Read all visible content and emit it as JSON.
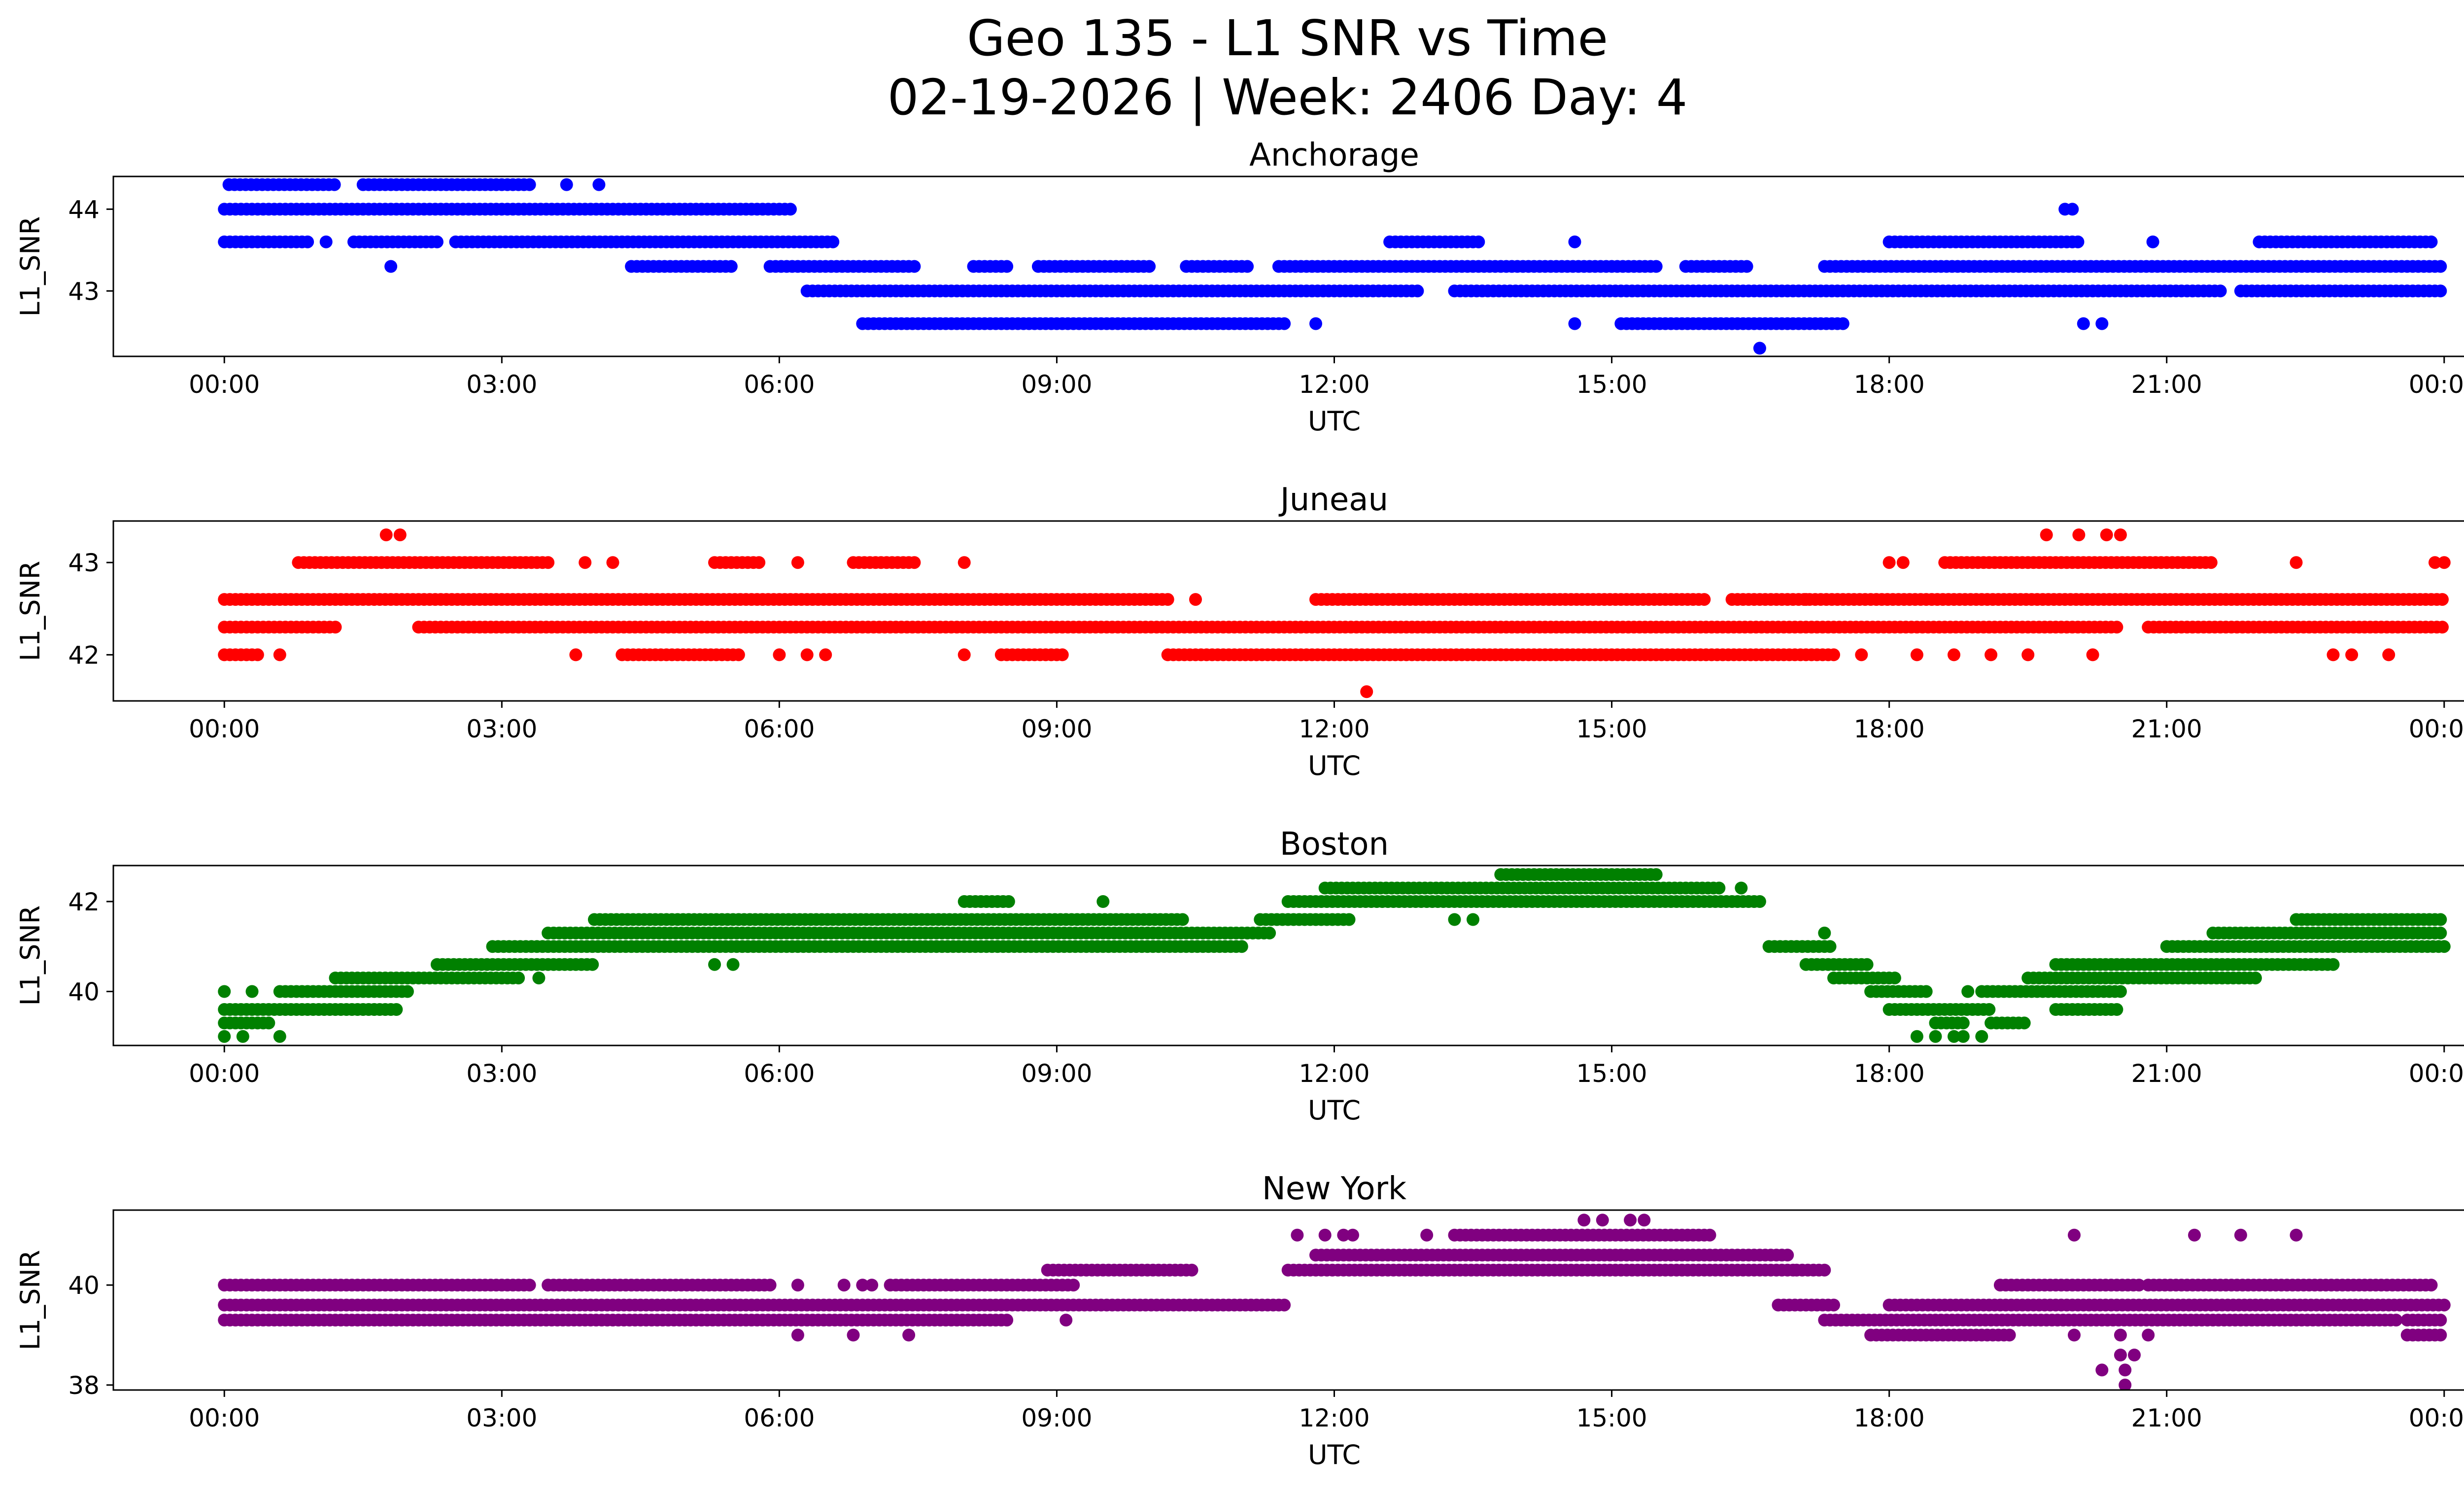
{
  "title": "Geo 135 - L1 SNR vs Time",
  "subtitle": "02-19-2026 | Week: 2406 Day: 4",
  "chart_data": [
    {
      "type": "scatter",
      "title": "Anchorage",
      "xlabel": "UTC",
      "ylabel": "L1_SNR",
      "color": "#0000ff",
      "xlim": [
        -1.2,
        25.2
      ],
      "ylim": [
        42.2,
        44.4
      ],
      "yticks": [
        43,
        44
      ],
      "xtick_labels": [
        "00:00",
        "03:00",
        "06:00",
        "09:00",
        "12:00",
        "15:00",
        "18:00",
        "21:00",
        "00:00"
      ],
      "levels": [
        {
          "y": 44.3,
          "segments": [
            [
              0.05,
              1.2
            ],
            [
              1.5,
              3.3
            ]
          ],
          "points": [
            3.7,
            4.05
          ]
        },
        {
          "y": 44.0,
          "segments": [
            [
              0,
              6.15
            ]
          ],
          "points": [
            19.9,
            19.98
          ]
        },
        {
          "y": 43.6,
          "segments": [
            [
              0,
              0.9
            ],
            [
              1.4,
              2.3
            ],
            [
              2.5,
              6.6
            ],
            [
              12.6,
              13.6
            ],
            [
              18.0,
              20.05
            ],
            [
              22.0,
              23.9
            ]
          ],
          "points": [
            1.1,
            14.6,
            20.85
          ]
        },
        {
          "y": 43.3,
          "segments": [
            [
              4.4,
              5.5
            ],
            [
              5.9,
              7.5
            ],
            [
              8.1,
              8.5
            ],
            [
              8.8,
              10.0
            ],
            [
              10.4,
              11.1
            ],
            [
              11.4,
              15.5
            ],
            [
              15.8,
              16.5
            ],
            [
              17.3,
              24.0
            ]
          ],
          "points": [
            1.8
          ]
        },
        {
          "y": 43.0,
          "segments": [
            [
              6.3,
              12.9
            ],
            [
              13.3,
              21.6
            ],
            [
              21.8,
              24.0
            ]
          ],
          "points": []
        },
        {
          "y": 42.6,
          "segments": [
            [
              6.9,
              11.5
            ],
            [
              15.1,
              17.5
            ]
          ],
          "points": [
            11.8,
            14.6,
            20.1,
            20.3
          ]
        },
        {
          "y": 42.3,
          "segments": [],
          "points": [
            16.6
          ]
        }
      ]
    },
    {
      "type": "scatter",
      "title": "Juneau",
      "xlabel": "UTC",
      "ylabel": "L1_SNR",
      "color": "#ff0000",
      "xlim": [
        -1.2,
        25.2
      ],
      "ylim": [
        41.5,
        43.45
      ],
      "yticks": [
        42,
        43
      ],
      "xtick_labels": [
        "00:00",
        "03:00",
        "06:00",
        "09:00",
        "12:00",
        "15:00",
        "18:00",
        "21:00",
        "00:00"
      ],
      "levels": [
        {
          "y": 43.3,
          "segments": [],
          "points": [
            1.75,
            1.9,
            19.7,
            20.05,
            20.35,
            20.5
          ]
        },
        {
          "y": 43.0,
          "segments": [
            [
              0.8,
              3.5
            ],
            [
              5.3,
              5.8
            ],
            [
              6.8,
              7.5
            ],
            [
              18.6,
              21.5
            ]
          ],
          "points": [
            3.9,
            4.2,
            6.2,
            8.0,
            18.0,
            18.15,
            22.4,
            23.9,
            24.0
          ]
        },
        {
          "y": 42.6,
          "segments": [
            [
              0,
              10.2
            ],
            [
              11.8,
              16.0
            ],
            [
              16.3,
              24.0
            ]
          ],
          "points": [
            10.5,
            17.1
          ]
        },
        {
          "y": 42.3,
          "segments": [
            [
              0,
              1.2
            ],
            [
              2.1,
              20.5
            ],
            [
              20.8,
              24.0
            ]
          ],
          "points": []
        },
        {
          "y": 42.0,
          "segments": [
            [
              0,
              0.4
            ],
            [
              4.3,
              5.6
            ],
            [
              8.4,
              9.1
            ],
            [
              10.2,
              17.4
            ]
          ],
          "points": [
            0.6,
            3.8,
            6.0,
            6.3,
            6.5,
            8.0,
            17.7,
            18.3,
            18.7,
            19.1,
            19.5,
            20.2,
            22.8,
            23.0,
            23.4
          ]
        },
        {
          "y": 41.6,
          "segments": [],
          "points": [
            12.35
          ]
        }
      ]
    },
    {
      "type": "scatter",
      "title": "Boston",
      "xlabel": "UTC",
      "ylabel": "L1_SNR",
      "color": "#008000",
      "xlim": [
        -1.2,
        25.2
      ],
      "ylim": [
        38.8,
        42.8
      ],
      "yticks": [
        40,
        42
      ],
      "xtick_labels": [
        "00:00",
        "03:00",
        "06:00",
        "09:00",
        "12:00",
        "15:00",
        "18:00",
        "21:00",
        "00:00"
      ],
      "levels": [
        {
          "y": 42.6,
          "segments": [
            [
              13.8,
              15.5
            ]
          ],
          "points": []
        },
        {
          "y": 42.3,
          "segments": [
            [
              11.9,
              16.2
            ]
          ],
          "points": [
            16.4
          ]
        },
        {
          "y": 42.0,
          "segments": [
            [
              8.0,
              8.5
            ],
            [
              11.5,
              16.6
            ]
          ],
          "points": [
            9.5
          ]
        },
        {
          "y": 41.6,
          "segments": [
            [
              4.0,
              10.4
            ],
            [
              11.2,
              12.2
            ],
            [
              22.4,
              24.0
            ]
          ],
          "points": [
            13.3,
            13.5
          ]
        },
        {
          "y": 41.3,
          "segments": [
            [
              3.5,
              11.3
            ],
            [
              21.5,
              24.0
            ]
          ],
          "points": [
            17.3
          ]
        },
        {
          "y": 41.0,
          "segments": [
            [
              2.9,
              11.0
            ],
            [
              16.7,
              17.4
            ],
            [
              21.0,
              24.0
            ]
          ],
          "points": []
        },
        {
          "y": 40.6,
          "segments": [
            [
              2.3,
              4.0
            ],
            [
              17.1,
              17.8
            ],
            [
              19.8,
              22.8
            ]
          ],
          "points": [
            5.3,
            5.5
          ]
        },
        {
          "y": 40.3,
          "segments": [
            [
              1.2,
              3.2
            ],
            [
              17.4,
              18.1
            ],
            [
              19.5,
              22.0
            ]
          ],
          "points": [
            3.4
          ]
        },
        {
          "y": 40.0,
          "segments": [
            [
              0.6,
              2.0
            ],
            [
              17.8,
              18.4
            ],
            [
              19.0,
              20.5
            ]
          ],
          "points": [
            0.0,
            0.3,
            18.85
          ]
        },
        {
          "y": 39.6,
          "segments": [
            [
              0,
              1.9
            ],
            [
              18.0,
              19.1
            ],
            [
              19.8,
              20.5
            ]
          ],
          "points": []
        },
        {
          "y": 39.3,
          "segments": [
            [
              0,
              0.5
            ],
            [
              18.5,
              18.85
            ],
            [
              19.1,
              19.5
            ]
          ],
          "points": []
        },
        {
          "y": 39.0,
          "segments": [],
          "points": [
            0.0,
            0.2,
            0.6,
            18.3,
            18.5,
            18.7,
            18.8,
            19.0
          ]
        }
      ]
    },
    {
      "type": "scatter",
      "title": "New York",
      "xlabel": "UTC",
      "ylabel": "L1_SNR",
      "color": "#800080",
      "xlim": [
        -1.2,
        25.2
      ],
      "ylim": [
        37.9,
        41.5
      ],
      "yticks": [
        38,
        40
      ],
      "xtick_labels": [
        "00:00",
        "03:00",
        "06:00",
        "09:00",
        "12:00",
        "15:00",
        "18:00",
        "21:00",
        "00:00"
      ],
      "levels": [
        {
          "y": 41.3,
          "segments": [],
          "points": [
            14.7,
            14.9,
            15.2,
            15.35
          ]
        },
        {
          "y": 41.0,
          "segments": [
            [
              13.3,
              16.1
            ]
          ],
          "points": [
            11.6,
            11.9,
            12.1,
            12.2,
            13.0,
            20.0,
            21.3,
            21.8,
            22.4
          ]
        },
        {
          "y": 40.6,
          "segments": [
            [
              11.8,
              16.9
            ]
          ],
          "points": []
        },
        {
          "y": 40.3,
          "segments": [
            [
              8.9,
              10.5
            ],
            [
              11.5,
              17.0
            ],
            [
              17.0,
              17.3
            ]
          ],
          "points": []
        },
        {
          "y": 40.0,
          "segments": [
            [
              0,
              3.3
            ],
            [
              3.5,
              5.9
            ],
            [
              7.2,
              9.2
            ],
            [
              19.2,
              20.7
            ],
            [
              20.8,
              23.9
            ]
          ],
          "points": [
            6.2,
            6.7,
            6.9,
            7.0
          ]
        },
        {
          "y": 39.6,
          "segments": [
            [
              0,
              11.5
            ],
            [
              16.8,
              17.4
            ],
            [
              18.0,
              24.0
            ]
          ],
          "points": []
        },
        {
          "y": 39.3,
          "segments": [
            [
              0,
              8.5
            ],
            [
              17.3,
              23.5
            ],
            [
              23.6,
              24.0
            ]
          ],
          "points": [
            9.1
          ]
        },
        {
          "y": 39.0,
          "segments": [
            [
              17.8,
              19.3
            ],
            [
              23.6,
              24.0
            ]
          ],
          "points": [
            6.2,
            6.8,
            7.4,
            20.0,
            20.5,
            20.8
          ]
        },
        {
          "y": 38.6,
          "segments": [],
          "points": [
            20.5,
            20.65
          ]
        },
        {
          "y": 38.3,
          "segments": [],
          "points": [
            20.3,
            20.55
          ]
        },
        {
          "y": 38.0,
          "segments": [],
          "points": [
            20.55
          ]
        }
      ]
    }
  ]
}
